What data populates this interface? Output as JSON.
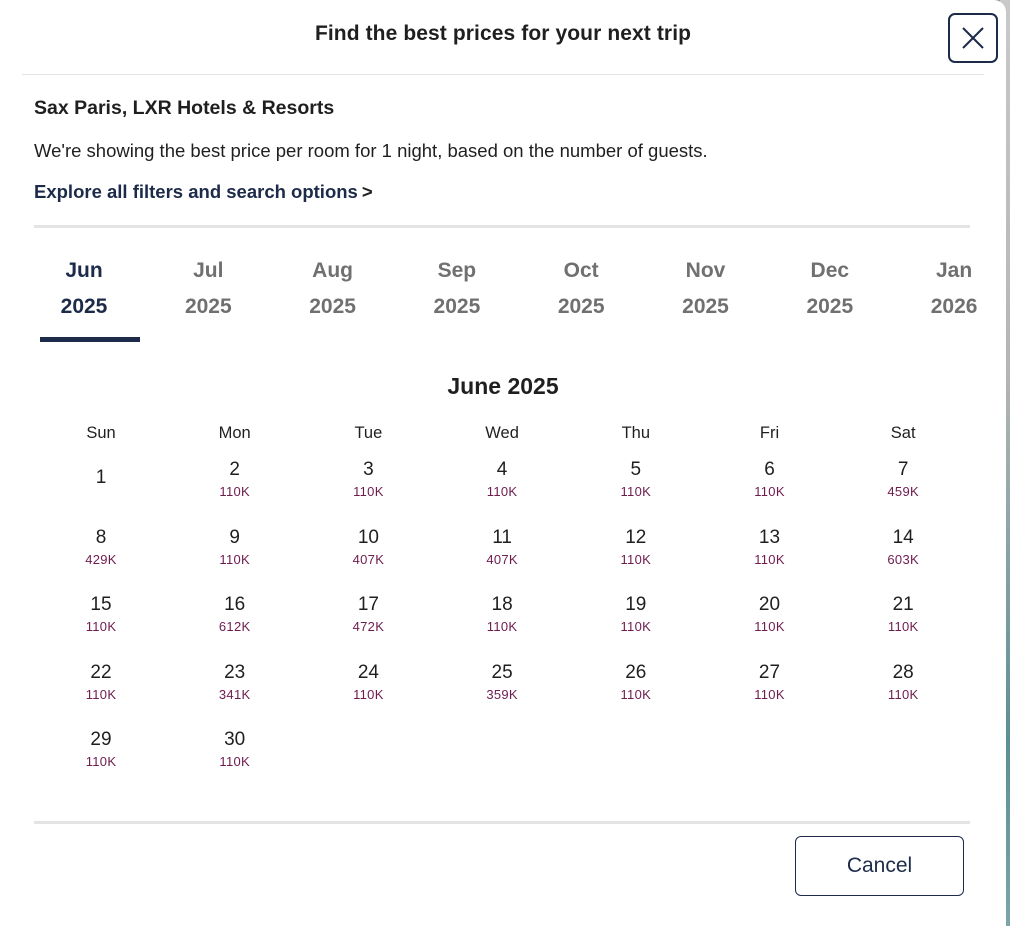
{
  "modal": {
    "title": "Find the best prices for your next trip",
    "close_icon": "close-icon"
  },
  "hotel": {
    "name": "Sax Paris, LXR Hotels & Resorts",
    "description": "We're showing the best price per room for 1 night, based on the number of guests.",
    "explore_link": "Explore all filters and search options",
    "explore_chevron": ">"
  },
  "month_tabs": [
    {
      "month": "Jun",
      "year": "2025",
      "active": true
    },
    {
      "month": "Jul",
      "year": "2025",
      "active": false
    },
    {
      "month": "Aug",
      "year": "2025",
      "active": false
    },
    {
      "month": "Sep",
      "year": "2025",
      "active": false
    },
    {
      "month": "Oct",
      "year": "2025",
      "active": false
    },
    {
      "month": "Nov",
      "year": "2025",
      "active": false
    },
    {
      "month": "Dec",
      "year": "2025",
      "active": false
    },
    {
      "month": "Jan",
      "year": "2026",
      "active": false
    }
  ],
  "calendar": {
    "title": "June 2025",
    "weekdays": [
      "Sun",
      "Mon",
      "Tue",
      "Wed",
      "Thu",
      "Fri",
      "Sat"
    ],
    "first_weekday_index": 0,
    "days": [
      {
        "day": "1",
        "price": ""
      },
      {
        "day": "2",
        "price": "110K"
      },
      {
        "day": "3",
        "price": "110K"
      },
      {
        "day": "4",
        "price": "110K"
      },
      {
        "day": "5",
        "price": "110K"
      },
      {
        "day": "6",
        "price": "110K"
      },
      {
        "day": "7",
        "price": "459K"
      },
      {
        "day": "8",
        "price": "429K"
      },
      {
        "day": "9",
        "price": "110K"
      },
      {
        "day": "10",
        "price": "407K"
      },
      {
        "day": "11",
        "price": "407K"
      },
      {
        "day": "12",
        "price": "110K"
      },
      {
        "day": "13",
        "price": "110K"
      },
      {
        "day": "14",
        "price": "603K"
      },
      {
        "day": "15",
        "price": "110K"
      },
      {
        "day": "16",
        "price": "612K"
      },
      {
        "day": "17",
        "price": "472K"
      },
      {
        "day": "18",
        "price": "110K"
      },
      {
        "day": "19",
        "price": "110K"
      },
      {
        "day": "20",
        "price": "110K"
      },
      {
        "day": "21",
        "price": "110K"
      },
      {
        "day": "22",
        "price": "110K"
      },
      {
        "day": "23",
        "price": "341K"
      },
      {
        "day": "24",
        "price": "110K"
      },
      {
        "day": "25",
        "price": "359K"
      },
      {
        "day": "26",
        "price": "110K"
      },
      {
        "day": "27",
        "price": "110K"
      },
      {
        "day": "28",
        "price": "110K"
      },
      {
        "day": "29",
        "price": "110K"
      },
      {
        "day": "30",
        "price": "110K"
      }
    ]
  },
  "footer": {
    "cancel_label": "Cancel"
  },
  "colors": {
    "brand_navy": "#1c2b4a",
    "price_text": "#6e1b4e",
    "inactive_tab": "#707070"
  }
}
